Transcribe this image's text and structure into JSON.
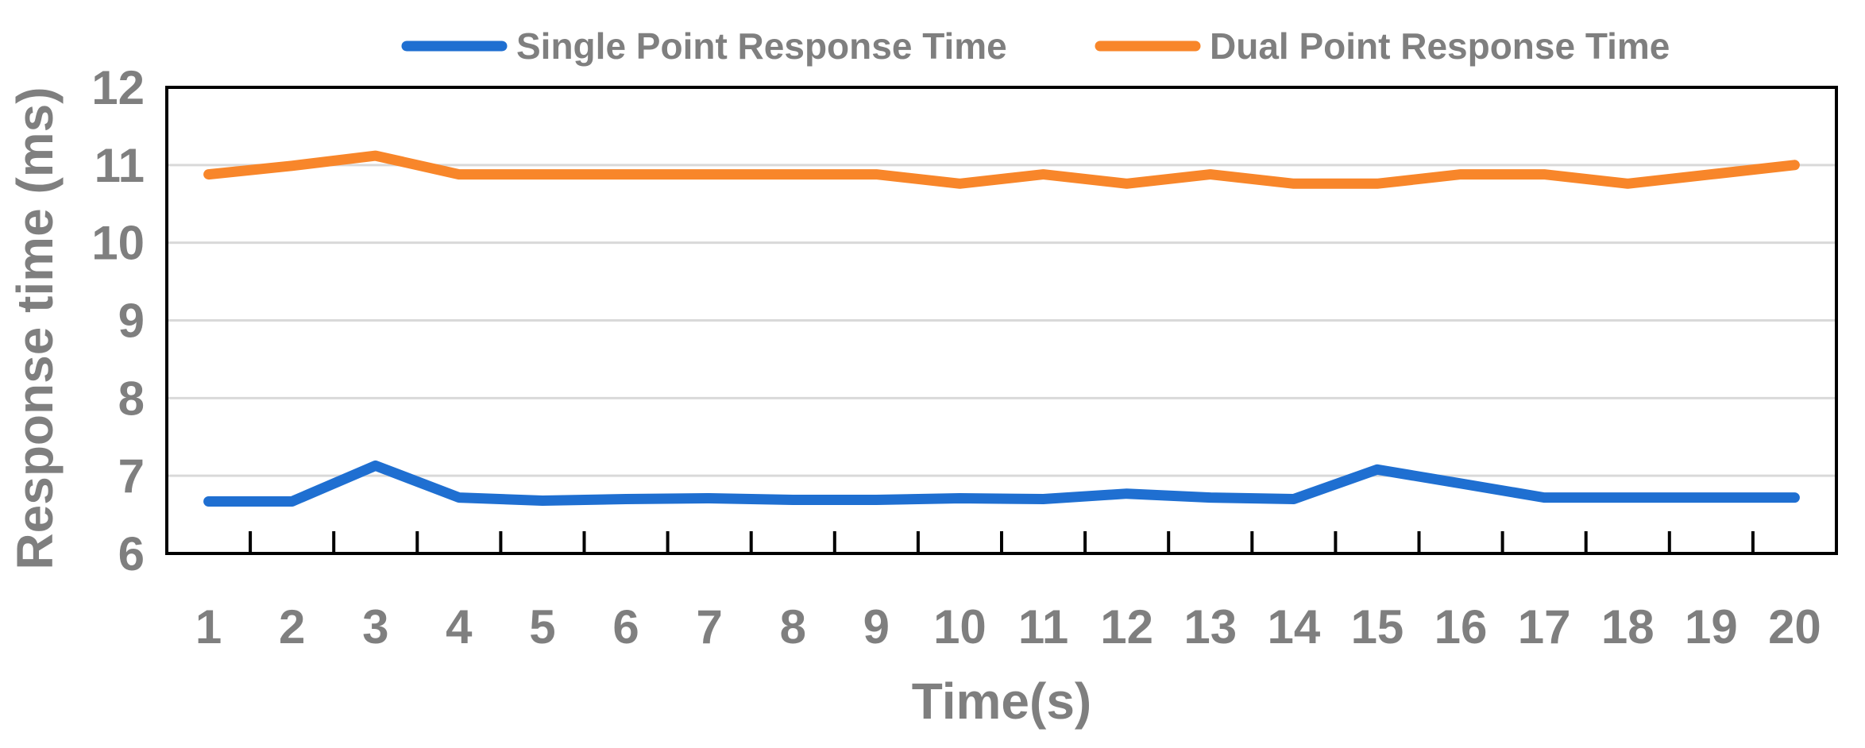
{
  "chart_data": {
    "type": "line",
    "title": "",
    "xlabel": "Time(s)",
    "ylabel": "Response time (ms)",
    "categories": [
      "1",
      "2",
      "3",
      "4",
      "5",
      "6",
      "7",
      "8",
      "9",
      "10",
      "11",
      "12",
      "13",
      "14",
      "15",
      "16",
      "17",
      "18",
      "19",
      "20"
    ],
    "ylim": [
      6,
      12
    ],
    "yticks": [
      "6",
      "7",
      "8",
      "9",
      "10",
      "11",
      "12"
    ],
    "grid": true,
    "legend_position": "top",
    "series": [
      {
        "name": "Single Point  Response Time",
        "color": "#1f6fd1",
        "values": [
          6.67,
          6.67,
          7.13,
          6.72,
          6.68,
          6.7,
          6.71,
          6.69,
          6.69,
          6.71,
          6.7,
          6.77,
          6.72,
          6.7,
          7.08,
          6.9,
          6.72,
          6.72,
          6.72,
          6.72
        ]
      },
      {
        "name": "Dual Point  Response Time",
        "color": "#f8862a",
        "values": [
          10.88,
          10.99,
          11.12,
          10.88,
          10.88,
          10.88,
          10.88,
          10.88,
          10.88,
          10.76,
          10.88,
          10.76,
          10.88,
          10.76,
          10.76,
          10.88,
          10.88,
          10.76,
          10.88,
          11.0
        ]
      }
    ]
  }
}
